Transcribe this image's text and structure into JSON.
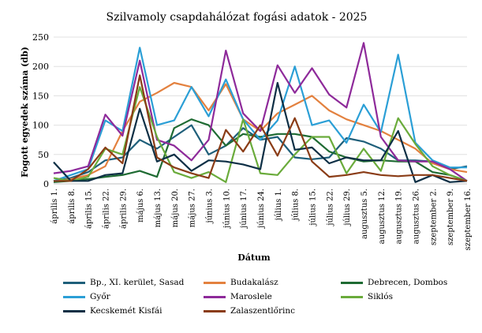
{
  "chart_data": {
    "type": "line",
    "title": "Szilvamoly csapdahálózat fogási adatok - 2025",
    "xlabel": "Dátum",
    "ylabel": "Fogott egyedek száma (db)",
    "ylim": [
      0,
      250
    ],
    "yticks": [
      0,
      50,
      100,
      150,
      200,
      250
    ],
    "grid": true,
    "legend_position": "bottom",
    "categories": [
      "április 1.",
      "április 8.",
      "április 15.",
      "április 22.",
      "április 29.",
      "május 6.",
      "május 13.",
      "május 20.",
      "május 27.",
      "június 3.",
      "június 10.",
      "június 17.",
      "június 24.",
      "július 1.",
      "július 8.",
      "július 15.",
      "július 22.",
      "július 29.",
      "augusztus 5.",
      "augusztus 12.",
      "augusztus 19.",
      "augusztus 26.",
      "szeptember 2.",
      "szeptember 9.",
      "szeptember 16."
    ],
    "series": [
      {
        "name": "Bp., XI. kerület, Sasad",
        "color": "#1f5f7a",
        "values": [
          5,
          10,
          20,
          40,
          45,
          75,
          60,
          80,
          100,
          50,
          65,
          95,
          75,
          80,
          45,
          42,
          45,
          78,
          72,
          60,
          40,
          40,
          38,
          25,
          30
        ]
      },
      {
        "name": "Budakalász",
        "color": "#e3813f",
        "values": [
          5,
          8,
          15,
          30,
          90,
          140,
          155,
          172,
          165,
          125,
          170,
          110,
          90,
          120,
          135,
          150,
          125,
          110,
          100,
          90,
          75,
          60,
          35,
          25,
          20
        ]
      },
      {
        "name": "Debrecen, Dombos",
        "color": "#1f6b33",
        "values": [
          3,
          5,
          8,
          12,
          15,
          22,
          12,
          95,
          110,
          100,
          65,
          85,
          80,
          85,
          85,
          80,
          55,
          45,
          38,
          40,
          38,
          38,
          20,
          15,
          5
        ]
      },
      {
        "name": "Győr",
        "color": "#2b9fd6",
        "values": [
          5,
          15,
          25,
          108,
          90,
          232,
          100,
          108,
          165,
          115,
          178,
          110,
          75,
          108,
          200,
          100,
          108,
          70,
          135,
          88,
          220,
          70,
          40,
          28,
          28
        ]
      },
      {
        "name": "Maroslele",
        "color": "#8e2a9a",
        "values": [
          18,
          22,
          30,
          118,
          82,
          210,
          75,
          65,
          40,
          75,
          227,
          120,
          90,
          202,
          155,
          197,
          152,
          130,
          240,
          80,
          40,
          38,
          38,
          25,
          5
        ]
      },
      {
        "name": "Siklós",
        "color": "#6aab3b",
        "values": [
          10,
          5,
          12,
          60,
          50,
          165,
          80,
          20,
          10,
          20,
          3,
          110,
          18,
          15,
          50,
          80,
          80,
          18,
          60,
          22,
          112,
          68,
          30,
          15,
          5
        ]
      },
      {
        "name": "Kecskemét Kisfái",
        "color": "#0d2f45",
        "values": [
          37,
          5,
          5,
          15,
          18,
          128,
          38,
          50,
          22,
          40,
          38,
          33,
          25,
          172,
          58,
          62,
          35,
          45,
          40,
          40,
          90,
          3,
          15,
          3,
          5
        ]
      },
      {
        "name": "Zalaszentlőrinc",
        "color": "#8a3c16",
        "values": [
          5,
          5,
          25,
          62,
          35,
          185,
          45,
          28,
          18,
          10,
          92,
          55,
          100,
          48,
          112,
          38,
          12,
          15,
          20,
          15,
          13,
          15,
          15,
          10,
          5
        ]
      }
    ]
  }
}
